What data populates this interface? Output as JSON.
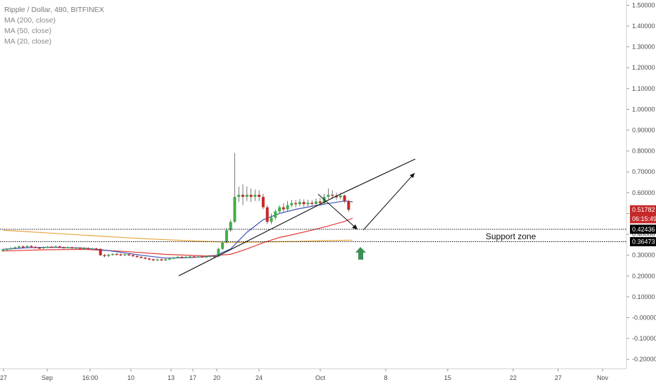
{
  "legend": {
    "title": "Ripple / Dollar, 480, BITFINEX",
    "ma200": "MA (200, close)",
    "ma50": "MA (50, close)",
    "ma20": "MA (20, close)"
  },
  "chart_data": {
    "type": "candlestick",
    "title": "Ripple / Dollar, 480, BITFINEX",
    "y_ticks": [
      "1.50000",
      "1.40000",
      "1.30000",
      "1.20000",
      "1.10000",
      "1.00000",
      "0.90000",
      "0.80000",
      "0.70000",
      "0.60000",
      "0.50000",
      "0.40000",
      "0.30000",
      "0.20000",
      "0.10000",
      "-0.00000",
      "-0.10000",
      "-0.20000"
    ],
    "y_tick_values": [
      1.5,
      1.4,
      1.3,
      1.2,
      1.1,
      1.0,
      0.9,
      0.8,
      0.7,
      0.6,
      0.5,
      0.4,
      0.3,
      0.2,
      0.1,
      0.0,
      -0.1,
      -0.2
    ],
    "ylim": [
      -0.245,
      1.525
    ],
    "x_ticks": [
      "27",
      "Sep",
      "16:00",
      "10",
      "13",
      "17",
      "20",
      "24",
      "Oct",
      "8",
      "15",
      "22",
      "27",
      "Nov"
    ],
    "price_tags": [
      {
        "label": "0.51782",
        "value": 0.51782,
        "color": "#c62828"
      },
      {
        "label": "06:15:49",
        "value": 0.475,
        "color": "#c62828"
      },
      {
        "label": "0.42436",
        "value": 0.42436,
        "color": "#000000"
      },
      {
        "label": "0.36473",
        "value": 0.36473,
        "color": "#000000"
      }
    ],
    "support_lines": [
      0.42436,
      0.36473
    ],
    "annotation": "Support zone",
    "candles": [
      [
        0.32,
        0.326,
        0.33,
        0.316
      ],
      [
        0.326,
        0.33,
        0.334,
        0.322
      ],
      [
        0.33,
        0.334,
        0.338,
        0.326
      ],
      [
        0.334,
        0.338,
        0.342,
        0.33
      ],
      [
        0.338,
        0.342,
        0.346,
        0.334
      ],
      [
        0.342,
        0.34,
        0.347,
        0.336
      ],
      [
        0.34,
        0.344,
        0.348,
        0.336
      ],
      [
        0.344,
        0.34,
        0.348,
        0.336
      ],
      [
        0.34,
        0.336,
        0.344,
        0.332
      ],
      [
        0.336,
        0.334,
        0.34,
        0.33
      ],
      [
        0.334,
        0.338,
        0.342,
        0.33
      ],
      [
        0.338,
        0.34,
        0.344,
        0.334
      ],
      [
        0.34,
        0.338,
        0.344,
        0.334
      ],
      [
        0.338,
        0.342,
        0.346,
        0.334
      ],
      [
        0.342,
        0.338,
        0.346,
        0.334
      ],
      [
        0.338,
        0.336,
        0.342,
        0.332
      ],
      [
        0.336,
        0.338,
        0.342,
        0.332
      ],
      [
        0.338,
        0.334,
        0.342,
        0.33
      ],
      [
        0.334,
        0.336,
        0.34,
        0.33
      ],
      [
        0.336,
        0.332,
        0.34,
        0.328
      ],
      [
        0.332,
        0.334,
        0.338,
        0.328
      ],
      [
        0.334,
        0.33,
        0.338,
        0.326
      ],
      [
        0.33,
        0.332,
        0.336,
        0.326
      ],
      [
        0.332,
        0.33,
        0.336,
        0.326
      ],
      [
        0.33,
        0.3,
        0.334,
        0.296
      ],
      [
        0.3,
        0.296,
        0.306,
        0.29
      ],
      [
        0.296,
        0.302,
        0.306,
        0.29
      ],
      [
        0.302,
        0.306,
        0.31,
        0.298
      ],
      [
        0.306,
        0.304,
        0.31,
        0.3
      ],
      [
        0.304,
        0.3,
        0.308,
        0.296
      ],
      [
        0.3,
        0.304,
        0.308,
        0.296
      ],
      [
        0.304,
        0.3,
        0.308,
        0.296
      ],
      [
        0.3,
        0.296,
        0.304,
        0.292
      ],
      [
        0.296,
        0.292,
        0.3,
        0.288
      ],
      [
        0.292,
        0.288,
        0.296,
        0.284
      ],
      [
        0.288,
        0.284,
        0.292,
        0.28
      ],
      [
        0.284,
        0.28,
        0.288,
        0.276
      ],
      [
        0.28,
        0.276,
        0.284,
        0.272
      ],
      [
        0.276,
        0.28,
        0.284,
        0.272
      ],
      [
        0.28,
        0.276,
        0.284,
        0.272
      ],
      [
        0.276,
        0.28,
        0.284,
        0.272
      ],
      [
        0.28,
        0.284,
        0.288,
        0.276
      ],
      [
        0.284,
        0.288,
        0.292,
        0.28
      ],
      [
        0.288,
        0.292,
        0.296,
        0.284
      ],
      [
        0.292,
        0.29,
        0.296,
        0.286
      ],
      [
        0.29,
        0.292,
        0.296,
        0.286
      ],
      [
        0.292,
        0.294,
        0.298,
        0.288
      ],
      [
        0.294,
        0.292,
        0.298,
        0.288
      ],
      [
        0.292,
        0.294,
        0.298,
        0.288
      ],
      [
        0.294,
        0.292,
        0.298,
        0.288
      ],
      [
        0.292,
        0.294,
        0.298,
        0.288
      ],
      [
        0.294,
        0.296,
        0.3,
        0.29
      ],
      [
        0.296,
        0.294,
        0.3,
        0.29
      ],
      [
        0.294,
        0.33,
        0.336,
        0.29
      ],
      [
        0.33,
        0.36,
        0.366,
        0.326
      ],
      [
        0.36,
        0.42,
        0.43,
        0.356
      ],
      [
        0.42,
        0.46,
        0.47,
        0.412
      ],
      [
        0.46,
        0.58,
        0.79,
        0.455
      ],
      [
        0.58,
        0.59,
        0.63,
        0.555
      ],
      [
        0.59,
        0.58,
        0.64,
        0.54
      ],
      [
        0.58,
        0.59,
        0.63,
        0.56
      ],
      [
        0.59,
        0.58,
        0.62,
        0.555
      ],
      [
        0.58,
        0.59,
        0.615,
        0.56
      ],
      [
        0.59,
        0.58,
        0.612,
        0.56
      ],
      [
        0.58,
        0.53,
        0.595,
        0.52
      ],
      [
        0.53,
        0.46,
        0.54,
        0.45
      ],
      [
        0.46,
        0.48,
        0.5,
        0.45
      ],
      [
        0.48,
        0.51,
        0.52,
        0.47
      ],
      [
        0.51,
        0.53,
        0.54,
        0.5
      ],
      [
        0.53,
        0.52,
        0.55,
        0.505
      ],
      [
        0.52,
        0.54,
        0.56,
        0.51
      ],
      [
        0.54,
        0.55,
        0.565,
        0.53
      ],
      [
        0.55,
        0.545,
        0.565,
        0.53
      ],
      [
        0.545,
        0.555,
        0.57,
        0.535
      ],
      [
        0.555,
        0.545,
        0.568,
        0.532
      ],
      [
        0.545,
        0.552,
        0.566,
        0.535
      ],
      [
        0.552,
        0.546,
        0.564,
        0.532
      ],
      [
        0.546,
        0.558,
        0.572,
        0.536
      ],
      [
        0.558,
        0.55,
        0.575,
        0.538
      ],
      [
        0.55,
        0.58,
        0.595,
        0.545
      ],
      [
        0.58,
        0.59,
        0.62,
        0.57
      ],
      [
        0.59,
        0.585,
        0.612,
        0.57
      ],
      [
        0.585,
        0.578,
        0.6,
        0.565
      ],
      [
        0.578,
        0.586,
        0.6,
        0.568
      ],
      [
        0.586,
        0.56,
        0.592,
        0.55
      ],
      [
        0.56,
        0.518,
        0.566,
        0.508
      ]
    ],
    "ma20": [
      [
        0,
        0.328
      ],
      [
        6,
        0.336
      ],
      [
        12,
        0.338
      ],
      [
        20,
        0.334
      ],
      [
        26,
        0.322
      ],
      [
        34,
        0.3
      ],
      [
        40,
        0.286
      ],
      [
        46,
        0.288
      ],
      [
        52,
        0.296
      ],
      [
        56,
        0.33
      ],
      [
        60,
        0.41
      ],
      [
        64,
        0.47
      ],
      [
        68,
        0.5
      ],
      [
        72,
        0.52
      ],
      [
        76,
        0.535
      ],
      [
        80,
        0.548
      ],
      [
        84,
        0.56
      ],
      [
        86,
        0.556
      ]
    ],
    "ma50": [
      [
        0,
        0.32
      ],
      [
        10,
        0.326
      ],
      [
        20,
        0.328
      ],
      [
        30,
        0.318
      ],
      [
        40,
        0.304
      ],
      [
        50,
        0.296
      ],
      [
        56,
        0.304
      ],
      [
        60,
        0.33
      ],
      [
        64,
        0.36
      ],
      [
        68,
        0.385
      ],
      [
        72,
        0.402
      ],
      [
        76,
        0.42
      ],
      [
        80,
        0.44
      ],
      [
        84,
        0.462
      ],
      [
        86,
        0.478
      ]
    ],
    "ma200": [
      [
        0,
        0.42
      ],
      [
        10,
        0.408
      ],
      [
        20,
        0.396
      ],
      [
        30,
        0.384
      ],
      [
        40,
        0.374
      ],
      [
        50,
        0.366
      ],
      [
        56,
        0.362
      ],
      [
        60,
        0.362
      ],
      [
        66,
        0.364
      ],
      [
        72,
        0.366
      ],
      [
        80,
        0.37
      ],
      [
        86,
        0.372
      ]
    ]
  }
}
